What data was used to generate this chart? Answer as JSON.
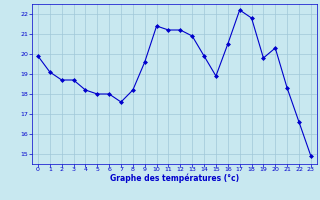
{
  "hours": [
    0,
    1,
    2,
    3,
    4,
    5,
    6,
    7,
    8,
    9,
    10,
    11,
    12,
    13,
    14,
    15,
    16,
    17,
    18,
    19,
    20,
    21,
    22,
    23
  ],
  "temps": [
    19.9,
    19.1,
    18.7,
    18.7,
    18.2,
    18.0,
    18.0,
    17.6,
    18.2,
    19.6,
    21.4,
    21.2,
    21.2,
    20.9,
    19.9,
    18.9,
    20.5,
    22.2,
    21.8,
    19.8,
    20.3,
    18.3,
    16.6,
    14.9
  ],
  "line_color": "#0000cc",
  "marker_color": "#0000cc",
  "bg_color": "#c8e8f0",
  "grid_color": "#a0c8d8",
  "axis_label_color": "#0000cc",
  "tick_color": "#0000cc",
  "xlabel": "Graphe des températures (°c)",
  "ylim": [
    14.5,
    22.5
  ],
  "yticks": [
    15,
    16,
    17,
    18,
    19,
    20,
    21,
    22
  ],
  "xlim": [
    -0.5,
    23.5
  ],
  "xticks": [
    0,
    1,
    2,
    3,
    4,
    5,
    6,
    7,
    8,
    9,
    10,
    11,
    12,
    13,
    14,
    15,
    16,
    17,
    18,
    19,
    20,
    21,
    22,
    23
  ]
}
